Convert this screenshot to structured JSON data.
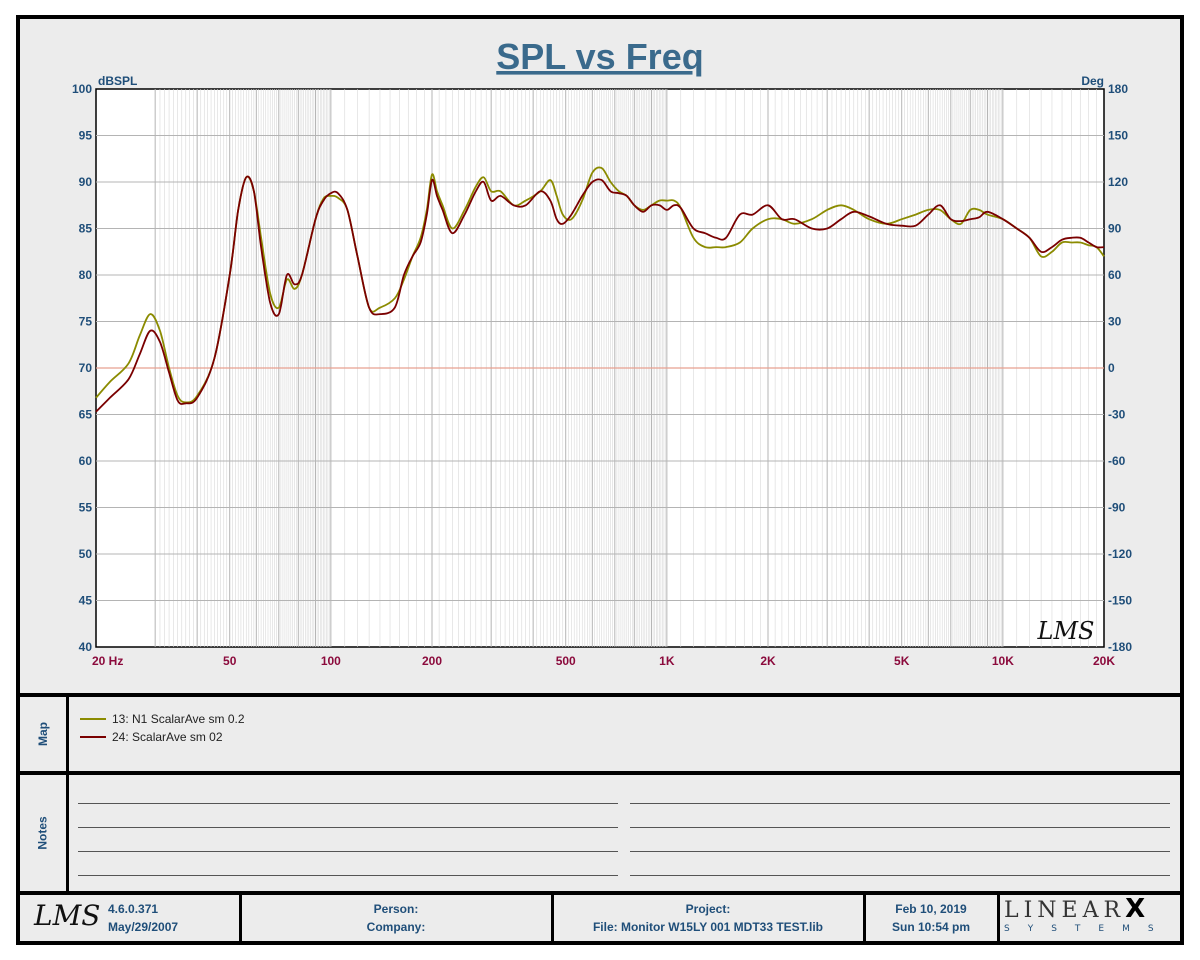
{
  "chart_data": {
    "type": "line",
    "title": "SPL vs Freq",
    "y_left_label": "dBSPL",
    "y_right_label": "Deg",
    "x_scale": "log",
    "xlim": [
      20,
      20000
    ],
    "ylim": [
      40,
      100
    ],
    "ylim_right": [
      -180,
      180
    ],
    "y_ticks": [
      100,
      95,
      90,
      85,
      80,
      75,
      70,
      65,
      60,
      55,
      50,
      45,
      40
    ],
    "y_right_ticks": [
      180,
      150,
      120,
      90,
      60,
      30,
      0,
      -30,
      -60,
      -90,
      -120,
      -150,
      -180
    ],
    "x_tick_labels": [
      {
        "f": 20,
        "label": "20  Hz"
      },
      {
        "f": 50,
        "label": "50"
      },
      {
        "f": 100,
        "label": "100"
      },
      {
        "f": 200,
        "label": "200"
      },
      {
        "f": 500,
        "label": "500"
      },
      {
        "f": 1000,
        "label": "1K"
      },
      {
        "f": 2000,
        "label": "2K"
      },
      {
        "f": 5000,
        "label": "5K"
      },
      {
        "f": 10000,
        "label": "10K"
      },
      {
        "f": 20000,
        "label": "20K"
      }
    ],
    "grid": true,
    "reference_line": 70,
    "series": [
      {
        "name": "13: N1 ScalarAve sm 0.2",
        "color": "#8b8b00",
        "x": [
          20,
          22,
          25,
          27,
          29,
          31,
          33,
          35,
          37,
          40,
          45,
          50,
          53,
          56,
          59,
          62,
          66,
          70,
          74,
          78,
          82,
          90,
          95,
          100,
          105,
          112,
          120,
          130,
          140,
          155,
          165,
          175,
          185,
          193,
          200,
          207,
          215,
          230,
          250,
          270,
          285,
          300,
          320,
          350,
          380,
          420,
          450,
          470,
          490,
          520,
          560,
          600,
          640,
          680,
          720,
          760,
          800,
          850,
          900,
          950,
          1000,
          1050,
          1100,
          1200,
          1300,
          1400,
          1500,
          1650,
          1800,
          2000,
          2200,
          2400,
          2700,
          3000,
          3300,
          3600,
          4000,
          4500,
          5000,
          5500,
          6000,
          6500,
          7000,
          7500,
          8000,
          8500,
          9000,
          10000,
          11000,
          12000,
          13000,
          14000,
          15000,
          16000,
          17000,
          18000,
          19000,
          20000
        ],
        "y": [
          66.8,
          68.5,
          70.5,
          73.5,
          75.8,
          74,
          70,
          67,
          66.3,
          67,
          71,
          80,
          87,
          90.5,
          89,
          84,
          78,
          76.5,
          79.5,
          78.5,
          80,
          86,
          88.2,
          88.5,
          88.3,
          87,
          82,
          76.5,
          76.5,
          77.5,
          79.5,
          82,
          84,
          87,
          90.8,
          89,
          87.5,
          85,
          87,
          89.5,
          90.5,
          89,
          89,
          87.5,
          88,
          89,
          90.2,
          88.5,
          86.5,
          86,
          88,
          91,
          91.5,
          90,
          89,
          88.5,
          87.5,
          87,
          87.5,
          88,
          88,
          88,
          87.2,
          84,
          83,
          83,
          83,
          83.5,
          85,
          86,
          86,
          85.5,
          86,
          87,
          87.5,
          87,
          86,
          85.5,
          86,
          86.5,
          87,
          87,
          86,
          85.5,
          87,
          87,
          86.5,
          86,
          85,
          84,
          82,
          82.5,
          83.5,
          83.5,
          83.5,
          83.2,
          83,
          82
        ]
      },
      {
        "name": "24: ScalarAve sm 02",
        "color": "#7a0000",
        "x": [
          20,
          22,
          25,
          27,
          29,
          31,
          33,
          35,
          37,
          40,
          45,
          50,
          53,
          56,
          59,
          62,
          66,
          70,
          74,
          78,
          82,
          90,
          95,
          100,
          105,
          112,
          120,
          130,
          140,
          155,
          165,
          175,
          185,
          193,
          200,
          207,
          215,
          230,
          250,
          270,
          285,
          300,
          320,
          350,
          380,
          420,
          450,
          470,
          490,
          520,
          560,
          600,
          640,
          680,
          720,
          760,
          800,
          850,
          900,
          950,
          1000,
          1050,
          1100,
          1200,
          1300,
          1400,
          1500,
          1650,
          1800,
          2000,
          2200,
          2400,
          2700,
          3000,
          3300,
          3600,
          4000,
          4500,
          5000,
          5500,
          6000,
          6500,
          7000,
          7500,
          8000,
          8500,
          9000,
          10000,
          11000,
          12000,
          13000,
          14000,
          15000,
          16000,
          17000,
          18000,
          19000,
          20000
        ],
        "y": [
          65.3,
          66.8,
          68.8,
          71.5,
          74,
          72.8,
          69.5,
          66.5,
          66.2,
          66.8,
          71,
          80,
          87,
          90.5,
          89,
          83,
          77,
          75.8,
          80,
          79,
          80,
          86,
          88,
          88.8,
          88.8,
          87,
          82,
          76.5,
          75.8,
          76.5,
          80,
          82,
          83.5,
          86.5,
          90.2,
          88.5,
          87,
          84.5,
          86.5,
          89,
          90,
          88,
          88.5,
          87.5,
          87.5,
          89,
          88,
          86,
          85.5,
          86.5,
          88.5,
          90,
          90.2,
          89,
          88.8,
          88.5,
          87.5,
          86.8,
          87.5,
          87.5,
          87,
          87.5,
          87.2,
          85,
          84.5,
          84,
          84,
          86.5,
          86.5,
          87.5,
          86,
          86,
          85,
          85,
          86,
          86.8,
          86.3,
          85.5,
          85.3,
          85.3,
          86.5,
          87.5,
          86,
          85.8,
          86,
          86.2,
          86.8,
          86,
          85,
          84,
          82.5,
          83,
          83.8,
          84,
          84,
          83.5,
          83,
          83
        ]
      }
    ]
  },
  "watermark": "LMS",
  "side_labels": {
    "map": "Map",
    "notes": "Notes"
  },
  "legend": [
    {
      "label": "13: N1 ScalarAve sm 0.2",
      "color": "#8b8b00"
    },
    {
      "label": "24: ScalarAve sm 02",
      "color": "#7a0000"
    }
  ],
  "footer": {
    "logo": "LMS",
    "version": "4.6.0.371",
    "date_built": "May/29/2007",
    "person_label": "Person:",
    "company_label": "Company:",
    "project_label": "Project:",
    "file_label": "File: Monitor W15LY 001 MDT33 TEST.lib",
    "date": "Feb 10, 2019",
    "time": "Sun 10:54 pm",
    "brand_main": "LINEAR",
    "brand_x": "X",
    "brand_sub": "SYSTEMS"
  },
  "colors": {
    "title": "#3a6a8c",
    "axis_left": "#1f4e79",
    "axis_bottom": "#8b0a3c",
    "grid": "#b4b4b4",
    "reference": "#e8a090"
  }
}
